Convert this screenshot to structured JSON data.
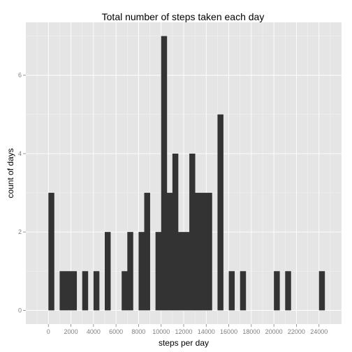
{
  "chart_data": {
    "type": "bar",
    "title": "Total number of steps taken each day",
    "xlabel": "steps per day",
    "ylabel": "count of days",
    "xlim": [
      -2000,
      26000
    ],
    "ylim": [
      -0.35,
      7.35
    ],
    "grid": true,
    "x_ticks": [
      0,
      2000,
      4000,
      6000,
      8000,
      10000,
      12000,
      14000,
      16000,
      18000,
      20000,
      22000,
      24000
    ],
    "y_ticks": [
      0,
      2,
      4,
      6
    ],
    "bin_width": 500,
    "bins": [
      {
        "x": 0,
        "count": 3
      },
      {
        "x": 1000,
        "count": 1
      },
      {
        "x": 1500,
        "count": 1
      },
      {
        "x": 2000,
        "count": 1
      },
      {
        "x": 3000,
        "count": 1
      },
      {
        "x": 4000,
        "count": 1
      },
      {
        "x": 5000,
        "count": 2
      },
      {
        "x": 6500,
        "count": 1
      },
      {
        "x": 7000,
        "count": 2
      },
      {
        "x": 8000,
        "count": 2
      },
      {
        "x": 8500,
        "count": 3
      },
      {
        "x": 9500,
        "count": 2
      },
      {
        "x": 10000,
        "count": 7
      },
      {
        "x": 10500,
        "count": 3
      },
      {
        "x": 11000,
        "count": 4
      },
      {
        "x": 11500,
        "count": 2
      },
      {
        "x": 12000,
        "count": 2
      },
      {
        "x": 12500,
        "count": 4
      },
      {
        "x": 13000,
        "count": 3
      },
      {
        "x": 13500,
        "count": 3
      },
      {
        "x": 14000,
        "count": 3
      },
      {
        "x": 15000,
        "count": 5
      },
      {
        "x": 16000,
        "count": 1
      },
      {
        "x": 17000,
        "count": 1
      },
      {
        "x": 20000,
        "count": 1
      },
      {
        "x": 21000,
        "count": 1
      },
      {
        "x": 24000,
        "count": 1
      }
    ],
    "colors": {
      "bar": "#333333",
      "panel": "#e5e5e5",
      "grid": "#ffffff"
    }
  }
}
